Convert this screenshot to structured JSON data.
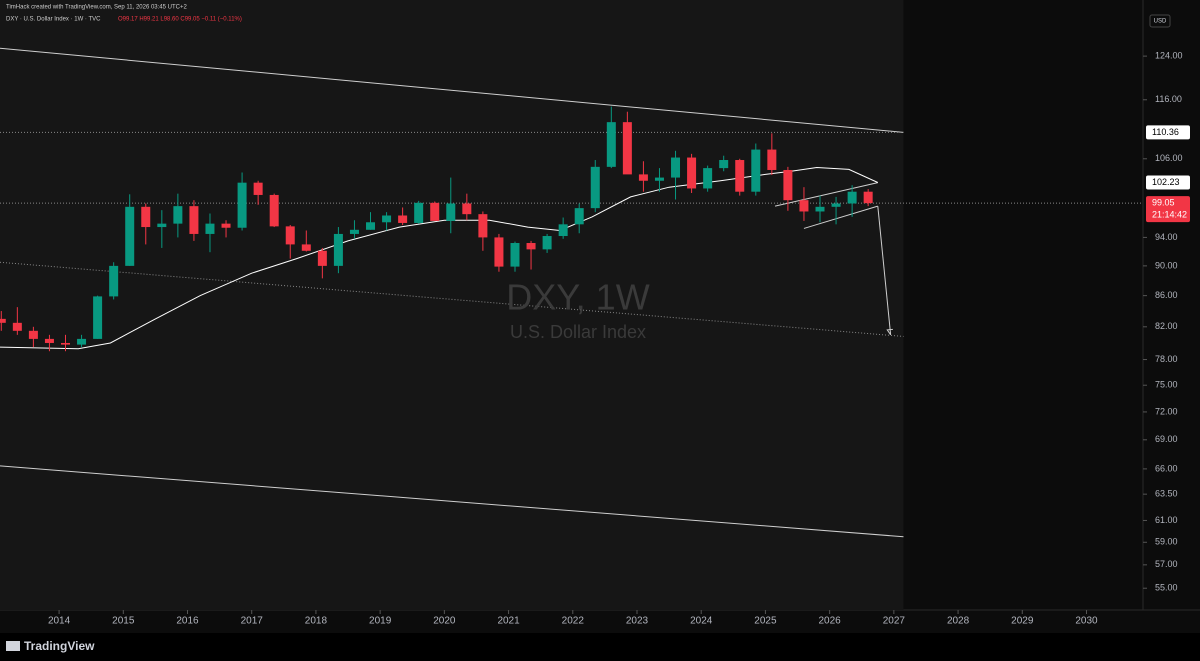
{
  "header": "TimHack created with TradingView.com, Sep 11, 2026 03:45 UTC+2",
  "footer": "TradingView",
  "chart_data": {
    "type": "candlestick",
    "legend": {
      "symbol": "DXY · U.S. Dollar Index · 1W · TVC",
      "ohlc": "O99.17 H99.21 L98.60 C99.05 −0.11 (−0.11%)"
    },
    "watermark": {
      "title": "DXY, 1W",
      "subtitle": "U.S. Dollar Index"
    },
    "currency": "USD",
    "countdown": "21:14:42",
    "log_scale": true,
    "xlim": [
      2013.08,
      2030.88
    ],
    "xticks": [
      2014,
      2015,
      2016,
      2017,
      2018,
      2019,
      2020,
      2021,
      2022,
      2023,
      2024,
      2025,
      2026,
      2027,
      2028,
      2029,
      2030
    ],
    "ylim": [
      53.2,
      135.1
    ],
    "yticks": [
      {
        "value": 55,
        "label": "55.00"
      },
      {
        "value": 57,
        "label": "57.00"
      },
      {
        "value": 59,
        "label": "59.00"
      },
      {
        "value": 61,
        "label": "61.00"
      },
      {
        "value": 63.5,
        "label": "63.50"
      },
      {
        "value": 66,
        "label": "66.00"
      },
      {
        "value": 69,
        "label": "69.00"
      },
      {
        "value": 72,
        "label": "72.00"
      },
      {
        "value": 75,
        "label": "75.00"
      },
      {
        "value": 78,
        "label": "78.00"
      },
      {
        "value": 82,
        "label": "82.00"
      },
      {
        "value": 86,
        "label": "86.00"
      },
      {
        "value": 90,
        "label": "90.00"
      },
      {
        "value": 94,
        "label": "94.00"
      },
      {
        "value": 106,
        "label": "106.00"
      },
      {
        "value": 116,
        "label": "116.00"
      },
      {
        "value": 124,
        "label": "124.00"
      }
    ],
    "up_color": "#089981",
    "down_color": "#f23645",
    "candles": {
      "x": [
        2013.1,
        2013.35,
        2013.6,
        2013.85,
        2014.1,
        2014.35,
        2014.6,
        2014.85,
        2015.1,
        2015.35,
        2015.6,
        2015.85,
        2016.1,
        2016.35,
        2016.6,
        2016.85,
        2017.1,
        2017.35,
        2017.6,
        2017.85,
        2018.1,
        2018.35,
        2018.6,
        2018.85,
        2019.1,
        2019.35,
        2019.6,
        2019.85,
        2020.1,
        2020.35,
        2020.6,
        2020.85,
        2021.1,
        2021.35,
        2021.6,
        2021.85,
        2022.1,
        2022.35,
        2022.6,
        2022.85,
        2023.1,
        2023.35,
        2023.6,
        2023.85,
        2024.1,
        2024.35,
        2024.6,
        2024.85,
        2025.1,
        2025.35,
        2025.6,
        2025.85,
        2026.1,
        2026.35,
        2026.6
      ],
      "open": [
        83,
        82.5,
        81.5,
        80.5,
        80,
        79.8,
        80.5,
        85.9,
        90,
        98.5,
        95.5,
        96,
        98.6,
        94.5,
        96,
        95.4,
        102.2,
        100.3,
        95.6,
        93,
        92.1,
        90,
        94.5,
        95.1,
        96.2,
        97.2,
        96.1,
        99.1,
        96.4,
        99,
        97.4,
        94,
        89.9,
        93.2,
        92.3,
        94.2,
        95.9,
        98.3,
        104.7,
        112.1,
        103.5,
        102.5,
        103,
        106.2,
        101.3,
        104.5,
        105.8,
        100.8,
        107.5,
        104.2,
        99.5,
        97.8,
        98.5,
        99,
        100.8
      ],
      "high": [
        84,
        84.5,
        82,
        81,
        81,
        81,
        86,
        90.5,
        100.4,
        99,
        98,
        100.5,
        99.5,
        97.5,
        96.5,
        103.8,
        102.5,
        100.5,
        95.8,
        95,
        92.5,
        95.5,
        96.5,
        97.7,
        97.7,
        98.4,
        99.4,
        99.3,
        103,
        100.5,
        97.8,
        94.5,
        93.4,
        93.5,
        94.5,
        96.9,
        99,
        105.8,
        114.8,
        113.9,
        105.6,
        104.5,
        107.3,
        106.8,
        104.9,
        106.5,
        106,
        108.5,
        110.2,
        104.7,
        101.5,
        100.2,
        100,
        101.8,
        101.2
      ],
      "low": [
        81.5,
        81,
        79.5,
        79,
        79,
        79.5,
        80.5,
        85.5,
        90,
        93,
        92.5,
        94,
        93.5,
        91.9,
        94,
        95,
        98.8,
        95.5,
        91,
        92,
        88.3,
        89,
        93.8,
        95.1,
        95,
        95.8,
        96,
        96.5,
        94.6,
        96.5,
        92.1,
        89.2,
        89.2,
        89.5,
        91.8,
        93.8,
        94.6,
        97.7,
        104.5,
        103.8,
        100.8,
        100.8,
        99.6,
        100.6,
        100.8,
        104,
        100.2,
        100.2,
        103.4,
        97.9,
        96.4,
        96.2,
        95.9,
        97,
        98.6
      ],
      "close": [
        82.5,
        81.5,
        80.5,
        80,
        79.8,
        80.5,
        85.9,
        90,
        98.5,
        95.5,
        96,
        98.6,
        94.5,
        96,
        95.4,
        102.2,
        100.3,
        95.6,
        93,
        92.1,
        90,
        94.5,
        95.1,
        96.2,
        97.2,
        96.1,
        99.1,
        96.4,
        99,
        97.4,
        94,
        89.9,
        93.2,
        92.3,
        94.2,
        95.9,
        98.3,
        104.7,
        112.1,
        103.5,
        102.5,
        103,
        106.2,
        101.3,
        104.5,
        105.8,
        100.8,
        107.5,
        104.2,
        99.5,
        97.8,
        98.5,
        99,
        100.8,
        99.05
      ]
    },
    "ma": {
      "color": "#ffffff",
      "x": [
        2013.08,
        2014.3,
        2014.8,
        2015.5,
        2016.2,
        2017.0,
        2017.7,
        2018.5,
        2019.3,
        2020.0,
        2020.7,
        2021.3,
        2021.8,
        2022.3,
        2022.9,
        2023.5,
        2024.3,
        2025.0,
        2025.4,
        2025.8,
        2026.3,
        2026.75
      ],
      "values": [
        79.5,
        79.3,
        80,
        83,
        86,
        89,
        91,
        93.5,
        95.5,
        96.5,
        96.5,
        95.5,
        95,
        97,
        100,
        101.5,
        102.5,
        103.5,
        104,
        104.6,
        104.3,
        102.23
      ]
    },
    "price_labels": [
      {
        "value": 110.36,
        "color": "#ffffff"
      },
      {
        "value": 102.23,
        "color": "#ffffff"
      },
      {
        "value": 99.05,
        "color": "#f23645"
      }
    ],
    "drawings": [
      {
        "kind": "line",
        "style": "solid",
        "x": [
          2013.08,
          2027.15
        ],
        "y": [
          125.5,
          110.36
        ]
      },
      {
        "kind": "line",
        "style": "dotted",
        "x": [
          2013.08,
          2027.15
        ],
        "y": [
          90.5,
          80.8
        ]
      },
      {
        "kind": "line",
        "style": "solid",
        "x": [
          2013.08,
          2027.15
        ],
        "y": [
          66.3,
          59.5
        ]
      },
      {
        "kind": "line",
        "style": "dotted",
        "x": [
          2013.08,
          2027.15
        ],
        "y": [
          110.36,
          110.36
        ]
      },
      {
        "kind": "line",
        "style": "dotted",
        "x": [
          2013.08,
          2030.88
        ],
        "y": [
          99.05,
          99.05
        ]
      },
      {
        "kind": "line",
        "style": "solid",
        "x": [
          2025.15,
          2026.75
        ],
        "y": [
          98.6,
          102.2
        ]
      },
      {
        "kind": "line",
        "style": "solid",
        "x": [
          2025.6,
          2026.75
        ],
        "y": [
          95.3,
          98.6
        ]
      },
      {
        "kind": "arrow",
        "style": "solid",
        "x": [
          2026.75,
          2026.95
        ],
        "y": [
          98.6,
          81
        ]
      }
    ],
    "highlight": {
      "x": [
        2013.08,
        2027.15
      ]
    }
  }
}
